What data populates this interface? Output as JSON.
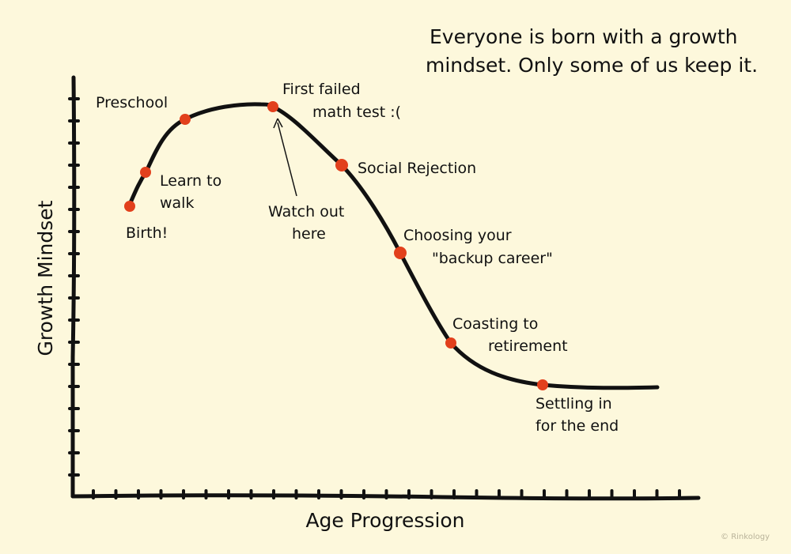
{
  "chart_data": {
    "type": "line",
    "title_lines": [
      "Everyone is born with a growth",
      "mindset. Only some of us keep it."
    ],
    "xlabel": "Age Progression",
    "ylabel": "Growth Mindset",
    "milestones": [
      {
        "lines": [
          "Birth!"
        ]
      },
      {
        "lines": [
          "Learn to",
          "walk"
        ]
      },
      {
        "lines": [
          "Preschool"
        ]
      },
      {
        "lines": [
          "First failed",
          "math test :("
        ]
      },
      {
        "lines": [
          "Social Rejection"
        ]
      },
      {
        "lines": [
          "Choosing your",
          "\"backup career\""
        ]
      },
      {
        "lines": [
          "Coasting to",
          "retirement"
        ]
      },
      {
        "lines": [
          "Settling in",
          "for the end"
        ]
      }
    ],
    "annotation": {
      "lines": [
        "Watch out",
        "here"
      ],
      "points_to": 3
    },
    "grid": false,
    "colors": {
      "curve": "#111111",
      "marker": "#e2401c",
      "background": "#fdf8dc"
    }
  },
  "credit": "© Rinkology"
}
